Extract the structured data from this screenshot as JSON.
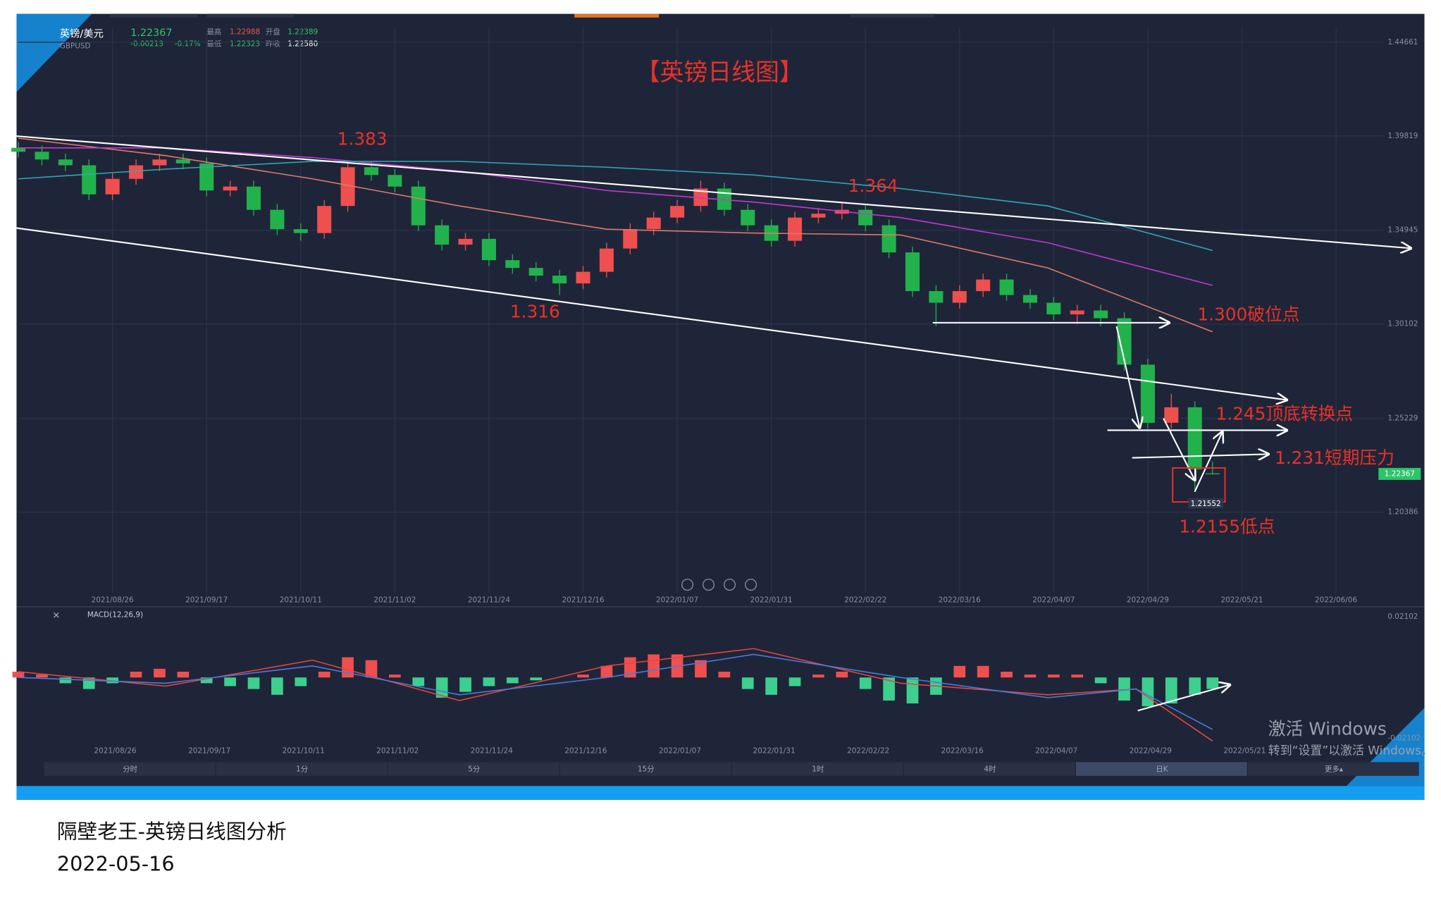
{
  "header": {
    "symbol": "英镑/美元",
    "code": "GBPUSD",
    "price": "1.22367",
    "change": "-0.00213",
    "change_pct": "-0.17%",
    "high_label": "最高",
    "high": "1.22988",
    "open_label": "开盘",
    "open": "1.22389",
    "low_label": "最低",
    "low": "1.22323",
    "prev_label": "昨收",
    "prev": "1.22580"
  },
  "chart_data": [
    {
      "type": "candlestick",
      "title": "【英镑日线图】",
      "x": [
        0,
        4,
        8,
        12,
        16,
        20,
        24,
        28,
        32,
        36,
        40,
        44,
        48,
        52,
        56,
        60,
        64,
        68,
        72,
        76,
        80,
        84,
        88,
        92,
        96,
        100,
        104,
        108,
        112,
        116,
        120,
        124,
        128,
        132,
        136,
        140,
        144,
        148,
        152,
        156,
        160,
        164,
        168,
        172,
        176,
        180,
        184,
        188,
        192,
        196,
        200,
        203
      ],
      "open": [
        1.392,
        1.39,
        1.386,
        1.383,
        1.368,
        1.376,
        1.383,
        1.386,
        1.384,
        1.37,
        1.372,
        1.36,
        1.35,
        1.348,
        1.362,
        1.382,
        1.378,
        1.372,
        1.352,
        1.342,
        1.345,
        1.334,
        1.33,
        1.326,
        1.322,
        1.328,
        1.34,
        1.35,
        1.356,
        1.362,
        1.371,
        1.36,
        1.352,
        1.344,
        1.356,
        1.358,
        1.36,
        1.352,
        1.338,
        1.318,
        1.312,
        1.318,
        1.324,
        1.316,
        1.312,
        1.306,
        1.308,
        1.304,
        1.28,
        1.25,
        1.258,
        1.22389
      ],
      "high": [
        1.395,
        1.393,
        1.389,
        1.386,
        1.379,
        1.386,
        1.389,
        1.389,
        1.387,
        1.375,
        1.375,
        1.363,
        1.353,
        1.365,
        1.384,
        1.385,
        1.381,
        1.375,
        1.355,
        1.348,
        1.348,
        1.337,
        1.333,
        1.329,
        1.331,
        1.343,
        1.353,
        1.359,
        1.365,
        1.375,
        1.374,
        1.363,
        1.355,
        1.359,
        1.361,
        1.364,
        1.363,
        1.355,
        1.341,
        1.321,
        1.321,
        1.327,
        1.327,
        1.319,
        1.315,
        1.311,
        1.311,
        1.307,
        1.283,
        1.265,
        1.261,
        1.22988
      ],
      "low": [
        1.387,
        1.383,
        1.38,
        1.365,
        1.365,
        1.373,
        1.38,
        1.381,
        1.367,
        1.367,
        1.357,
        1.347,
        1.344,
        1.345,
        1.359,
        1.375,
        1.369,
        1.349,
        1.339,
        1.339,
        1.331,
        1.327,
        1.323,
        1.316,
        1.319,
        1.325,
        1.337,
        1.347,
        1.353,
        1.359,
        1.357,
        1.349,
        1.341,
        1.341,
        1.353,
        1.355,
        1.349,
        1.335,
        1.315,
        1.3,
        1.309,
        1.315,
        1.313,
        1.309,
        1.303,
        1.301,
        1.3,
        1.277,
        1.247,
        1.247,
        1.2155,
        1.22323
      ],
      "close": [
        1.39,
        1.386,
        1.383,
        1.368,
        1.376,
        1.383,
        1.386,
        1.384,
        1.37,
        1.372,
        1.36,
        1.35,
        1.348,
        1.362,
        1.382,
        1.378,
        1.372,
        1.352,
        1.342,
        1.345,
        1.334,
        1.33,
        1.326,
        1.322,
        1.328,
        1.34,
        1.35,
        1.356,
        1.362,
        1.371,
        1.36,
        1.352,
        1.344,
        1.356,
        1.358,
        1.36,
        1.352,
        1.338,
        1.318,
        1.312,
        1.318,
        1.324,
        1.316,
        1.312,
        1.306,
        1.308,
        1.304,
        1.28,
        1.25,
        1.258,
        1.226,
        1.22367
      ],
      "up_color": "#ef4f4f",
      "down_color": "#22b24c",
      "lines": [
        {
          "color": "#e07a6a",
          "x": [
            0,
            25,
            50,
            75,
            100,
            125,
            150,
            175,
            203
          ],
          "values": [
            1.397,
            1.388,
            1.376,
            1.362,
            1.35,
            1.348,
            1.347,
            1.33,
            1.297
          ]
        },
        {
          "color": "#c03ad0",
          "x": [
            0,
            25,
            50,
            75,
            100,
            125,
            150,
            175,
            203
          ],
          "values": [
            1.392,
            1.392,
            1.387,
            1.38,
            1.37,
            1.364,
            1.356,
            1.343,
            1.321
          ]
        },
        {
          "color": "#2fa8b8",
          "x": [
            0,
            25,
            50,
            75,
            100,
            125,
            150,
            175,
            203
          ],
          "values": [
            1.376,
            1.381,
            1.385,
            1.385,
            1.382,
            1.378,
            1.371,
            1.362,
            1.339
          ]
        }
      ],
      "xlim": [
        0,
        232
      ],
      "ylim": [
        1.1621,
        1.4541
      ],
      "yticks": [
        1.44661,
        1.39819,
        1.34945,
        1.30102,
        1.25229,
        1.20386
      ],
      "xticks": [
        {
          "value": 16,
          "label": "2021/08/26"
        },
        {
          "value": 32,
          "label": "2021/09/17"
        },
        {
          "value": 48,
          "label": "2021/10/11"
        },
        {
          "value": 64,
          "label": "2021/11/02"
        },
        {
          "value": 80,
          "label": "2021/11/24"
        },
        {
          "value": 96,
          "label": "2021/12/16"
        },
        {
          "value": 112,
          "label": "2022/01/07"
        },
        {
          "value": 128,
          "label": "2022/01/31"
        },
        {
          "value": 144,
          "label": "2022/02/22"
        },
        {
          "value": 160,
          "label": "2022/03/16"
        },
        {
          "value": 176,
          "label": "2022/04/07"
        },
        {
          "value": 192,
          "label": "2022/04/29"
        },
        {
          "value": 208,
          "label": "2022/05/21"
        },
        {
          "value": 224,
          "label": "2022/06/06"
        }
      ],
      "grid": true,
      "annotations": [
        "1.383",
        "1.364",
        "1.316",
        "1.300破位点",
        "1.245顶底转换点",
        "1.231短期压力",
        "1.2155低点"
      ],
      "low_tag": "1.21552",
      "last_price": "1.22367"
    },
    {
      "type": "macd",
      "title": "MACD(12,26,9)",
      "x": [
        0,
        4,
        8,
        12,
        16,
        20,
        24,
        28,
        32,
        36,
        40,
        44,
        48,
        52,
        56,
        60,
        64,
        68,
        72,
        76,
        80,
        84,
        88,
        92,
        96,
        100,
        104,
        108,
        112,
        116,
        120,
        124,
        128,
        132,
        136,
        140,
        144,
        148,
        152,
        156,
        160,
        164,
        168,
        172,
        176,
        180,
        184,
        188,
        192,
        196,
        200,
        203
      ],
      "values": [
        0.002,
        0.001,
        -0.002,
        -0.004,
        -0.002,
        0.002,
        0.003,
        0.002,
        -0.002,
        -0.003,
        -0.004,
        -0.006,
        -0.003,
        0.002,
        0.007,
        0.006,
        0.001,
        -0.003,
        -0.007,
        -0.005,
        -0.003,
        -0.002,
        -0.001,
        0,
        0.001,
        0.004,
        0.007,
        0.008,
        0.008,
        0.006,
        0.002,
        -0.004,
        -0.006,
        -0.003,
        0.001,
        0.002,
        -0.004,
        -0.008,
        -0.009,
        -0.006,
        0.004,
        0.004,
        0.002,
        0.001,
        0.001,
        0.001,
        -0.002,
        -0.008,
        -0.01,
        -0.009,
        -0.006,
        -0.004
      ],
      "up_color": "#ef4f4f",
      "down_color": "#3ccf8e",
      "lines": [
        {
          "color": "#e8453c",
          "x": [
            0,
            25,
            50,
            75,
            100,
            125,
            150,
            175,
            190,
            203
          ],
          "values": [
            0.002,
            -0.003,
            0.006,
            -0.008,
            0.004,
            0.01,
            -0.002,
            -0.006,
            -0.004,
            -0.022
          ]
        },
        {
          "color": "#4a7be0",
          "x": [
            0,
            25,
            50,
            75,
            100,
            125,
            150,
            175,
            190,
            203
          ],
          "values": [
            0,
            -0.002,
            0.004,
            -0.006,
            0,
            0.008,
            0,
            -0.007,
            -0.004,
            -0.018
          ]
        }
      ],
      "xlim": [
        0,
        232
      ],
      "ylim": [
        -0.036,
        0.0245
      ],
      "yticks": [
        0.02102,
        -0.02102
      ],
      "xticks": [
        {
          "value": 16,
          "label": "2021/08/26"
        },
        {
          "value": 32,
          "label": "2021/09/17"
        },
        {
          "value": 48,
          "label": "2021/10/11"
        },
        {
          "value": 64,
          "label": "2021/11/02"
        },
        {
          "value": 80,
          "label": "2021/11/24"
        },
        {
          "value": 96,
          "label": "2021/12/16"
        },
        {
          "value": 112,
          "label": "2022/01/07"
        },
        {
          "value": 128,
          "label": "2022/01/31"
        },
        {
          "value": 144,
          "label": "2022/02/22"
        },
        {
          "value": 160,
          "label": "2022/03/16"
        },
        {
          "value": 176,
          "label": "2022/04/07"
        },
        {
          "value": 192,
          "label": "2022/04/29"
        },
        {
          "value": 208,
          "label": "2022/05/21"
        }
      ]
    }
  ],
  "toolbar": {
    "tabs": [
      "分时",
      "1分",
      "5分",
      "15分",
      "1时",
      "4时",
      "日K",
      "更多▴"
    ],
    "active": 6
  },
  "watermark": [
    "激活 Windows",
    "转到“设置”以激活 Windows。"
  ],
  "caption": {
    "title": "隔壁老王-英镑日线图分析",
    "date": "2022-05-16"
  }
}
